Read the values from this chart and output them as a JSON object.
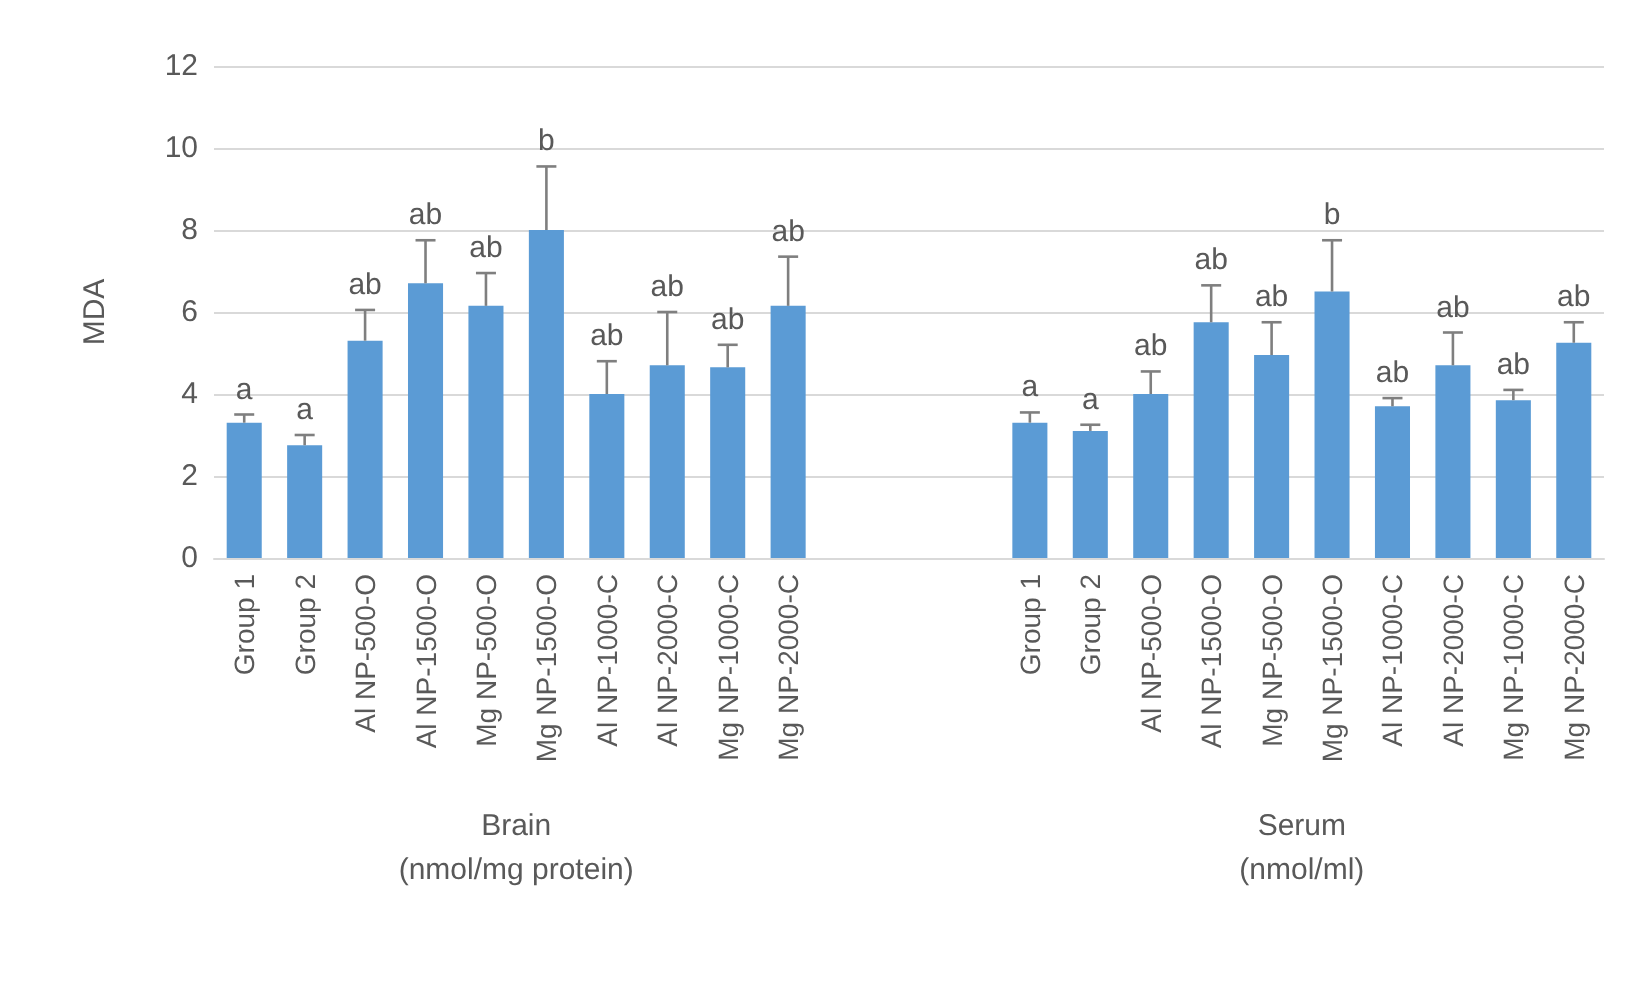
{
  "chart_data": {
    "type": "bar",
    "ylabel": "MDA",
    "categories": [
      "Group 1",
      "Group 2",
      "Al NP-500-O",
      "Al NP-1500-O",
      "Mg NP-500-O",
      "Mg NP-1500-O",
      "Al NP-1000-C",
      "Al NP-2000-C",
      "Mg NP-1000-C",
      "Mg NP-2000-C",
      null,
      null,
      null,
      "Group 1",
      "Group 2",
      "Al NP-500-O",
      "Al NP-1500-O",
      "Mg NP-500-O",
      "Mg NP-1500-O",
      "Al NP-1000-C",
      "Al NP-2000-C",
      "Mg NP-1000-C",
      "Mg NP-2000-C"
    ],
    "values": [
      3.3,
      2.75,
      5.3,
      6.7,
      6.15,
      8.0,
      4.0,
      4.7,
      4.65,
      6.15,
      null,
      null,
      null,
      3.3,
      3.1,
      4.0,
      5.75,
      4.95,
      6.5,
      3.7,
      4.7,
      3.85,
      5.25
    ],
    "errors": [
      [
        3.3,
        3.5
      ],
      [
        2.75,
        3.0
      ],
      [
        5.3,
        6.05
      ],
      [
        6.7,
        7.75
      ],
      [
        6.15,
        6.95
      ],
      [
        8.0,
        9.55
      ],
      [
        4.0,
        4.8
      ],
      [
        4.7,
        6.0
      ],
      [
        4.65,
        5.2
      ],
      [
        6.15,
        7.35
      ],
      null,
      null,
      null,
      [
        3.3,
        3.55
      ],
      [
        3.1,
        3.25
      ],
      [
        4.0,
        4.55
      ],
      [
        5.75,
        6.65
      ],
      [
        4.95,
        5.75
      ],
      [
        6.5,
        7.75
      ],
      [
        3.7,
        3.9
      ],
      [
        4.7,
        5.5
      ],
      [
        3.85,
        4.1
      ],
      [
        5.25,
        5.75
      ]
    ],
    "value_labels": [
      "a",
      "a",
      "ab",
      "ab",
      "ab",
      "b",
      "ab",
      "ab",
      "ab",
      "ab",
      null,
      null,
      null,
      "a",
      "a",
      "ab",
      "ab",
      "ab",
      "b",
      "ab",
      "ab",
      "ab",
      "ab"
    ],
    "color": "#5b9bd5",
    "ylim": [
      0,
      12
    ],
    "yticks": [
      0,
      2,
      4,
      6,
      8,
      10,
      12
    ],
    "grid": "y",
    "annotations": [
      "Brain\n(nmol/mg protein)",
      "Serum\n(nmol/ml)"
    ]
  }
}
